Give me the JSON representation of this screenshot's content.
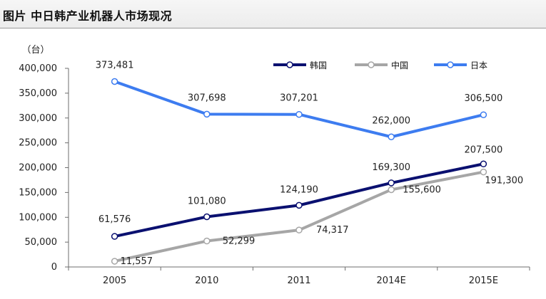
{
  "header": {
    "title": "图片  中日韩产业机器人市场现况"
  },
  "chart_data": {
    "type": "line",
    "title": "",
    "ylabel": "（台）",
    "xlabel": "",
    "categories": [
      "2005",
      "2010",
      "2011",
      "2014E",
      "2015E"
    ],
    "ylim": [
      0,
      400000
    ],
    "yticks": [
      0,
      50000,
      100000,
      150000,
      200000,
      250000,
      300000,
      350000,
      400000
    ],
    "ytick_labels": [
      "0",
      "50,000",
      "100,000",
      "150,000",
      "200,000",
      "250,000",
      "300,000",
      "350,000",
      "400,000"
    ],
    "grid": false,
    "legend_position": "top-right",
    "series": [
      {
        "name": "韩国",
        "color": "#0a1070",
        "values": [
          61576,
          101080,
          124190,
          169300,
          207500
        ],
        "labels": [
          "61,576",
          "101,080",
          "124,190",
          "169,300",
          "207,500"
        ]
      },
      {
        "name": "中国",
        "color": "#a6a6a6",
        "values": [
          11557,
          52299,
          74317,
          155600,
          191300
        ],
        "labels": [
          "11,557",
          "52,299",
          "74,317",
          "155,600",
          "191,300"
        ]
      },
      {
        "name": "日本",
        "color": "#3d7cf0",
        "values": [
          373481,
          307698,
          307201,
          262000,
          306500
        ],
        "labels": [
          "373,481",
          "307,698",
          "307,201",
          "262,000",
          "306,500"
        ]
      }
    ]
  }
}
